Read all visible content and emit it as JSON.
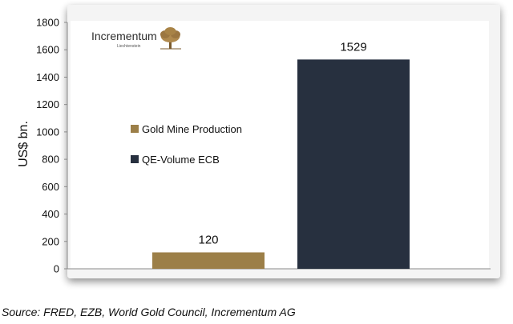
{
  "chart_data": {
    "type": "bar",
    "categories": [
      "Gold Mine Production",
      "QE-Volume ECB"
    ],
    "values": [
      120,
      1529
    ],
    "data_labels": [
      "120",
      "1529"
    ],
    "colors": [
      "#9c7f48",
      "#27303f"
    ],
    "ylabel": "US$ bn.",
    "ylim": [
      0,
      1800
    ],
    "yticks": [
      0,
      200,
      400,
      600,
      800,
      1000,
      1200,
      1400,
      1600,
      1800
    ],
    "grid": false,
    "legend": [
      {
        "name": "Gold Mine Production",
        "color": "#9c7f48"
      },
      {
        "name": "QE-Volume ECB",
        "color": "#27303f"
      }
    ],
    "legend_position": "middle-left"
  },
  "logo": {
    "name": "Incrementum",
    "subtitle": "Liechtenstein",
    "icon": "oak-tree-icon"
  },
  "source_text": "Source: FRED, EZB, World Gold Council, Incrementum AG",
  "colors": {
    "frame_shadow": "#c9c9c9",
    "plot_background": "#ffffff",
    "axis": "#8a8a8a",
    "text": "#111111"
  }
}
